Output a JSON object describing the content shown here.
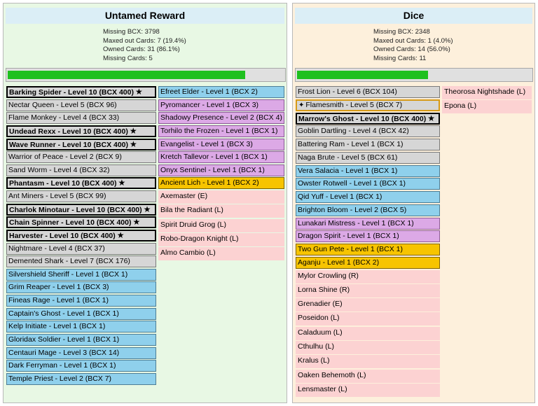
{
  "panels": {
    "left": {
      "title": "Untamed Reward",
      "stats": {
        "missing_bcx": "Missing BCX: 3798",
        "maxed_out": "Maxed out Cards: 7 (19.4%)",
        "owned": "Owned Cards: 31 (86.1%)",
        "missing": "Missing Cards: 5"
      },
      "progress": 0.86,
      "columns": [
        [
          {
            "label": "Barking Spider - Level 10 (BCX 400)",
            "color": "gray",
            "maxed": true
          },
          {
            "label": "Nectar Queen - Level 5 (BCX 96)",
            "color": "gray"
          },
          {
            "label": "Flame Monkey - Level 4 (BCX 33)",
            "color": "gray"
          },
          {
            "label": "Undead Rexx - Level 10 (BCX 400)",
            "color": "gray",
            "maxed": true
          },
          {
            "label": "Wave Runner - Level 10 (BCX 400)",
            "color": "gray",
            "maxed": true
          },
          {
            "label": "Warrior of Peace - Level 2 (BCX 9)",
            "color": "gray"
          },
          {
            "label": "Sand Worm - Level 4 (BCX 32)",
            "color": "gray"
          },
          {
            "label": "Phantasm - Level 10 (BCX 400)",
            "color": "gray",
            "maxed": true
          },
          {
            "label": "Ant Miners - Level 5 (BCX 99)",
            "color": "gray"
          },
          {
            "label": "Charlok Minotaur - Level 10 (BCX 400)",
            "color": "gray",
            "maxed": true
          },
          {
            "label": "Chain Spinner - Level 10 (BCX 400)",
            "color": "gray",
            "maxed": true
          },
          {
            "label": "Harvester - Level 10 (BCX 400)",
            "color": "gray",
            "maxed": true
          },
          {
            "label": "Nightmare - Level 4 (BCX 37)",
            "color": "gray"
          },
          {
            "label": "Demented Shark - Level 7 (BCX 176)",
            "color": "gray"
          },
          {
            "label": "Silvershield Sheriff - Level 1 (BCX 1)",
            "color": "blue"
          },
          {
            "label": "Grim Reaper - Level 1 (BCX 3)",
            "color": "blue"
          },
          {
            "label": "Fineas Rage - Level 1 (BCX 1)",
            "color": "blue"
          },
          {
            "label": "Captain's Ghost - Level 1 (BCX 1)",
            "color": "blue"
          },
          {
            "label": "Kelp Initiate - Level 1 (BCX 1)",
            "color": "blue"
          },
          {
            "label": "Gloridax Soldier - Level 1 (BCX 1)",
            "color": "blue"
          },
          {
            "label": "Centauri Mage - Level 3 (BCX 14)",
            "color": "blue"
          },
          {
            "label": "Dark Ferryman - Level 1 (BCX 1)",
            "color": "blue"
          },
          {
            "label": "Temple Priest - Level 2 (BCX 7)",
            "color": "blue"
          }
        ],
        [
          {
            "label": "Efreet Elder - Level 1 (BCX 2)",
            "color": "blue"
          },
          {
            "label": "Pyromancer - Level 1 (BCX 3)",
            "color": "purple"
          },
          {
            "label": "Shadowy Presence - Level 2 (BCX 4)",
            "color": "purple"
          },
          {
            "label": "Torhilo the Frozen - Level 1 (BCX 1)",
            "color": "purple"
          },
          {
            "label": "Evangelist - Level 1 (BCX 3)",
            "color": "purple"
          },
          {
            "label": "Kretch Tallevor - Level 1 (BCX 1)",
            "color": "purple"
          },
          {
            "label": "Onyx Sentinel - Level 1 (BCX 1)",
            "color": "purple"
          },
          {
            "label": "Ancient Lich - Level 1 (BCX 2)",
            "color": "gold"
          },
          {
            "label": "Axemaster (E)",
            "color": "pink"
          },
          {
            "label": "Bila the Radiant (L)",
            "color": "pink"
          },
          {
            "label": "Spirit Druid Grog (L)",
            "color": "pink"
          },
          {
            "label": "Robo-Dragon Knight (L)",
            "color": "pink"
          },
          {
            "label": "Almo Cambio (L)",
            "color": "pink"
          }
        ]
      ]
    },
    "right": {
      "title": "Dice",
      "stats": {
        "missing_bcx": "Missing BCX: 2348",
        "maxed_out": "Maxed out Cards: 1 (4.0%)",
        "owned": "Owned Cards: 14 (56.0%)",
        "missing": "Missing Cards: 11"
      },
      "progress": 0.56,
      "columns": [
        [
          {
            "label": "Frost Lion - Level 6 (BCX 104)",
            "color": "gray"
          },
          {
            "label": "Flamesmith - Level 5 (BCX 7)",
            "color": "gray",
            "highlight": true
          },
          {
            "label": "Marrow's Ghost - Level 10 (BCX 400)",
            "color": "gray",
            "maxed": true
          },
          {
            "label": "Goblin Dartling - Level 4 (BCX 42)",
            "color": "gray"
          },
          {
            "label": "Battering Ram - Level 1 (BCX 1)",
            "color": "gray"
          },
          {
            "label": "Naga Brute - Level 5 (BCX 61)",
            "color": "gray"
          },
          {
            "label": "Vera Salacia - Level 1 (BCX 1)",
            "color": "blue"
          },
          {
            "label": "Owster Rotwell - Level 1 (BCX 1)",
            "color": "blue"
          },
          {
            "label": "Qid Yuff - Level 1 (BCX 1)",
            "color": "blue"
          },
          {
            "label": "Brighton Bloom - Level 2 (BCX 5)",
            "color": "blue"
          },
          {
            "label": "Lunakari Mistress - Level 1 (BCX 1)",
            "color": "purple"
          },
          {
            "label": "Dragon Spirit - Level 1 (BCX 1)",
            "color": "purple"
          },
          {
            "label": "Two Gun Pete - Level 1 (BCX 1)",
            "color": "gold"
          },
          {
            "label": "Aganju - Level 1 (BCX 2)",
            "color": "gold"
          },
          {
            "label": "Mylor Crowling (R)",
            "color": "pink"
          },
          {
            "label": "Lorna Shine (R)",
            "color": "pink"
          },
          {
            "label": "Grenadier (E)",
            "color": "pink"
          },
          {
            "label": "Poseidon (L)",
            "color": "pink"
          },
          {
            "label": "Caladuum (L)",
            "color": "pink"
          },
          {
            "label": "Cthulhu (L)",
            "color": "pink"
          },
          {
            "label": "Kralus (L)",
            "color": "pink"
          },
          {
            "label": "Oaken Behemoth (L)",
            "color": "pink"
          },
          {
            "label": "Lensmaster (L)",
            "color": "pink"
          }
        ],
        [
          {
            "label": "Theorosa Nightshade (L)",
            "color": "pink"
          },
          {
            "label": "Epona (L)",
            "color": "pink"
          }
        ]
      ]
    }
  },
  "icons": {
    "maxed": "star-icon",
    "highlight": "sparkle-icon"
  }
}
